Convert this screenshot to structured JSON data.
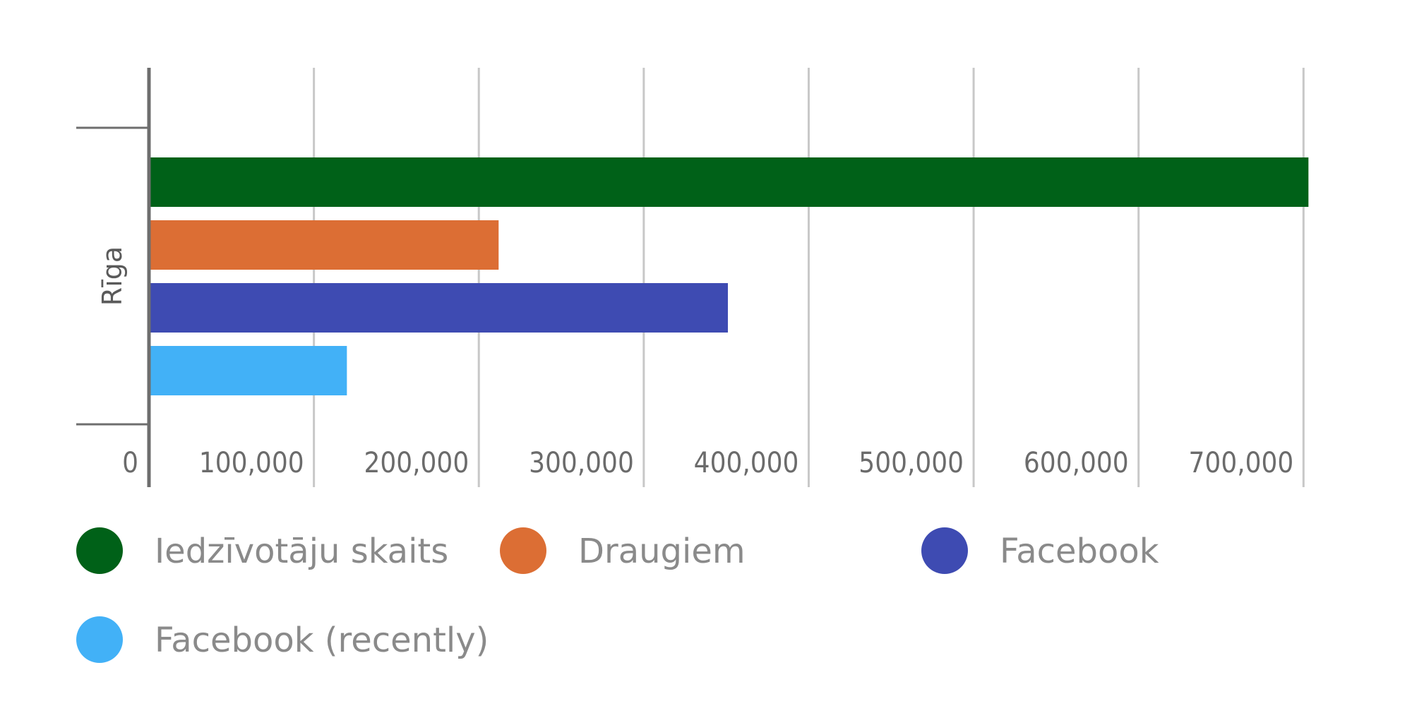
{
  "chart_data": {
    "type": "bar",
    "orientation": "horizontal",
    "categories": [
      "Rīga"
    ],
    "series": [
      {
        "name": "Iedzīvotāju skaits",
        "values": [
          703000
        ],
        "color": "#006118"
      },
      {
        "name": "Draugiem",
        "values": [
          212000
        ],
        "color": "#dc6e34"
      },
      {
        "name": "Facebook",
        "values": [
          351000
        ],
        "color": "#3e4bb2"
      },
      {
        "name": "Facebook (recently)",
        "values": [
          120000
        ],
        "color": "#42b1f7"
      }
    ],
    "x_ticks": [
      "0",
      "100,000",
      "200,000",
      "300,000",
      "400,000",
      "500,000",
      "600,000",
      "700,000"
    ],
    "xlim": [
      0,
      705000
    ],
    "grid": true,
    "legend_position": "bottom"
  }
}
